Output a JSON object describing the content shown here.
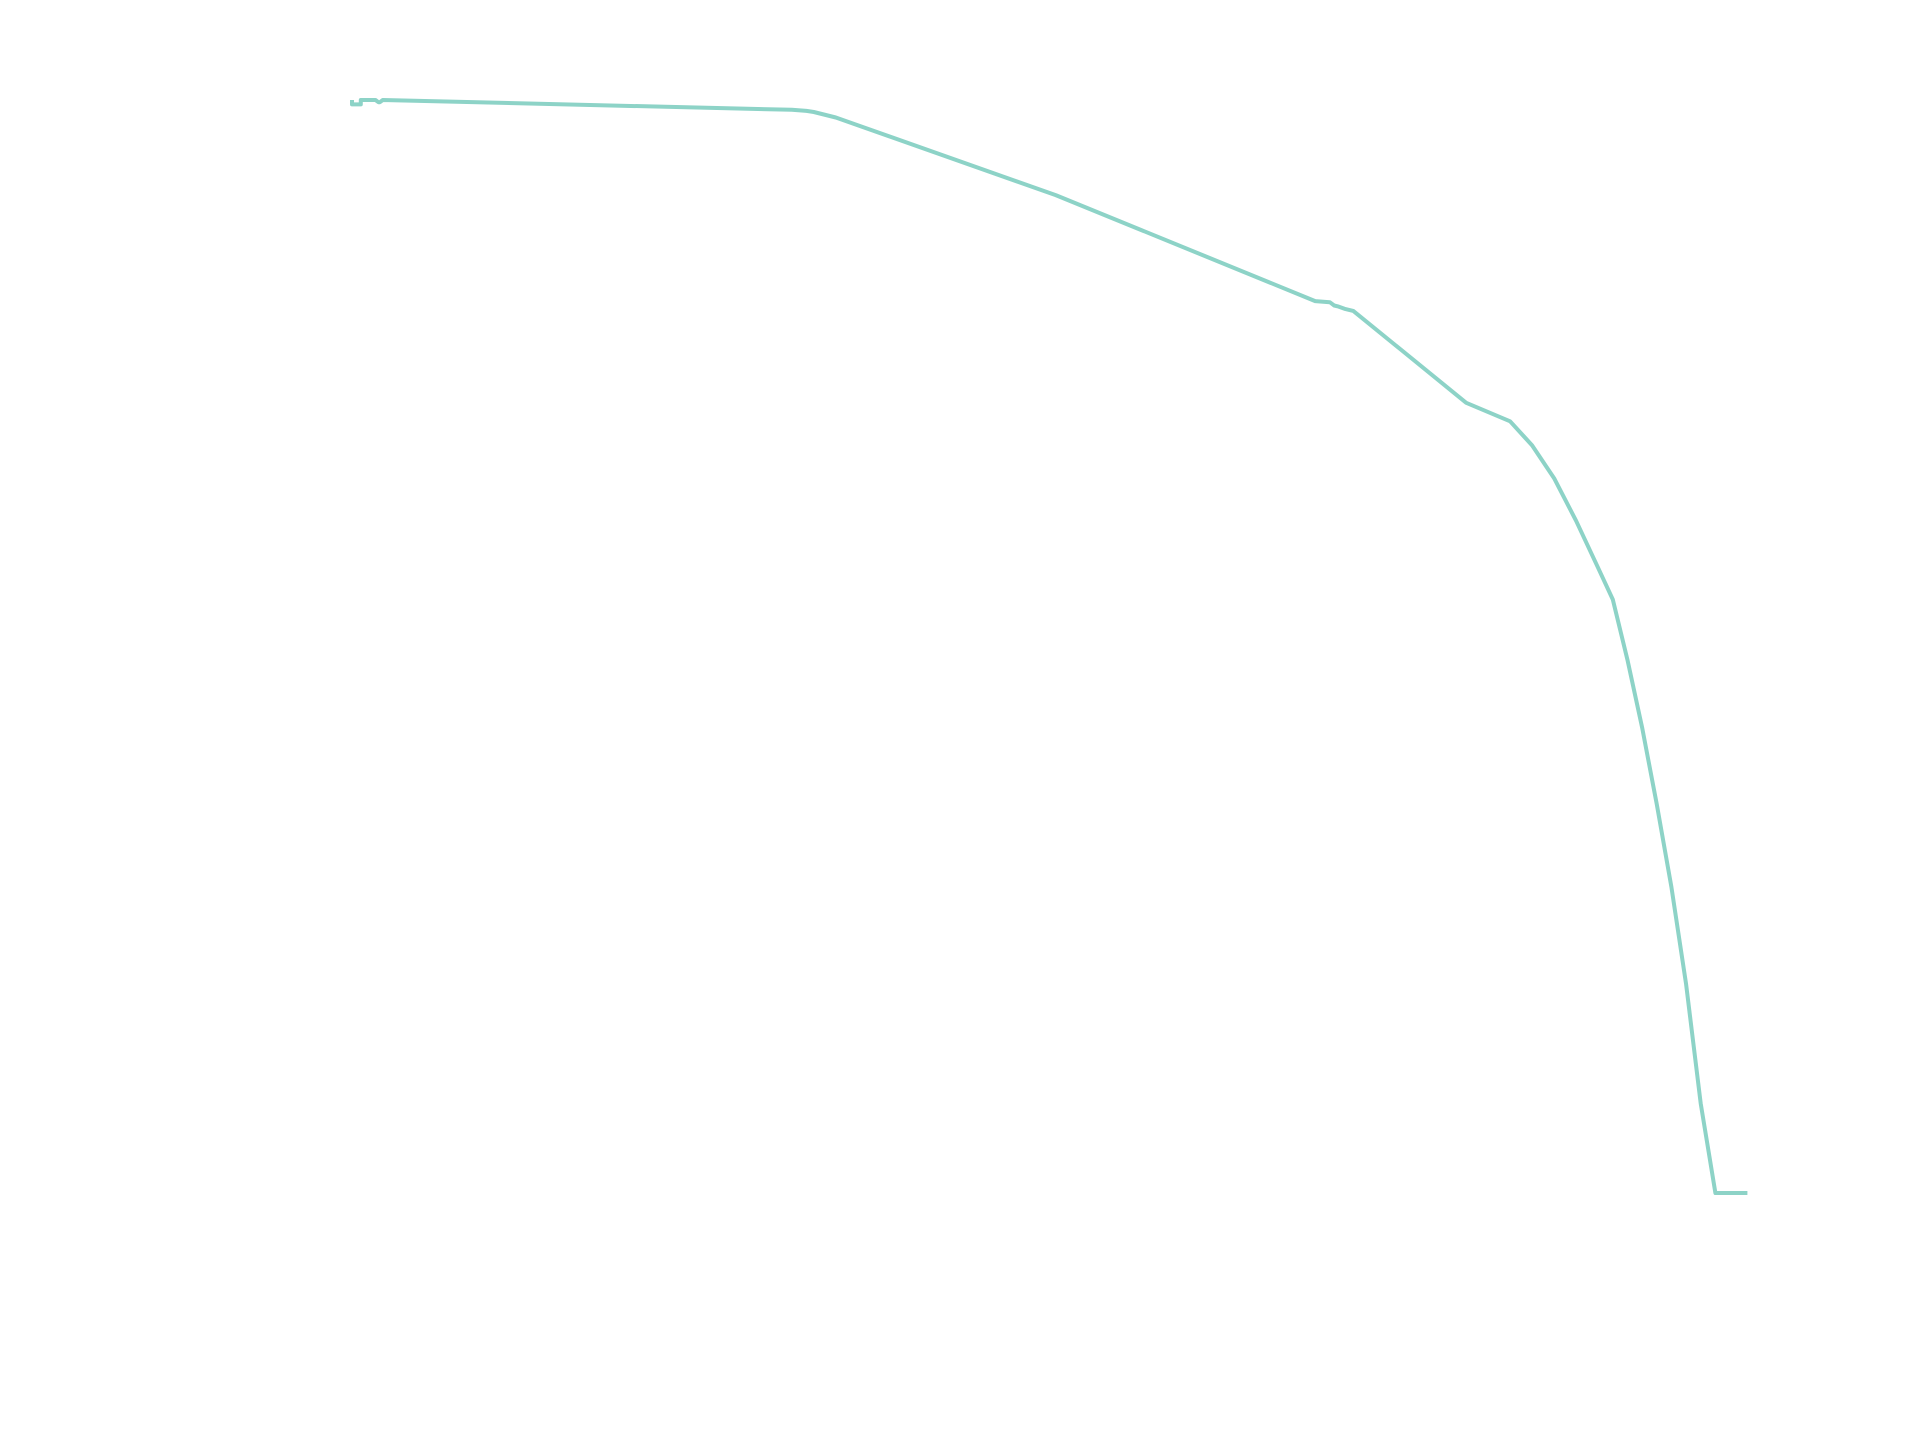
{
  "chart_data": {
    "type": "line",
    "title": "",
    "xlabel": "",
    "ylabel": "",
    "xlim": [
      0,
      100
    ],
    "ylim": [
      0,
      100
    ],
    "grid": false,
    "legend": "none",
    "axes_visible": false,
    "series": [
      {
        "color": "#8dd3c7",
        "x": [
          0.0,
          0.0,
          0.6,
          0.6,
          1.3,
          1.6,
          1.8,
          1.9,
          2.1,
          30.0,
          31.0,
          31.5,
          33.0,
          48.0,
          65.7,
          66.7,
          67.0,
          67.3,
          67.7,
          68.3,
          76.0,
          79.0,
          80.5,
          82.0,
          83.5,
          85.0,
          86.0,
          87.0,
          88.0,
          89.0,
          90.0,
          91.0,
          92.0,
          93.0,
          94.0,
          95.0,
          96.0,
          97.0,
          98.0,
          99.0,
          100.0
        ],
        "y": [
          100.0,
          99.6,
          99.6,
          100.0,
          100.0,
          100.0,
          99.8,
          99.8,
          100.0,
          99.1,
          99.0,
          98.9,
          98.4,
          91.3,
          81.6,
          81.5,
          81.2,
          81.1,
          80.9,
          80.7,
          72.3,
          70.6,
          68.4,
          65.4,
          61.5,
          57.2,
          54.3,
          48.8,
          42.6,
          35.6,
          28.0,
          19.1,
          8.2,
          0.0,
          0.0,
          0.0,
          0.0,
          0.0,
          0.0,
          0.0,
          0.0
        ]
      }
    ]
  }
}
